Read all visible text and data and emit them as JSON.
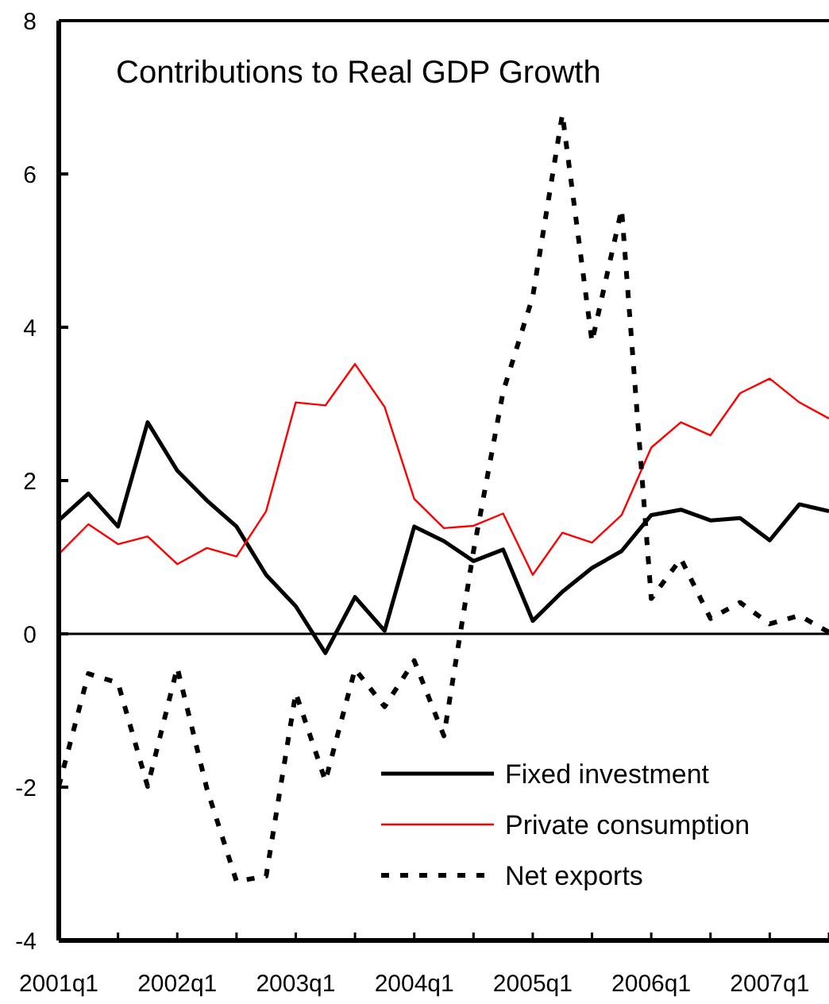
{
  "chart_data": {
    "type": "line",
    "title": "Contributions to Real GDP Growth",
    "categories": [
      "2001q1",
      null,
      null,
      null,
      "2002q1",
      null,
      null,
      null,
      "2003q1",
      null,
      null,
      null,
      "2004q1",
      null,
      null,
      null,
      "2005q1",
      null,
      null,
      null,
      "2006q1",
      null,
      null,
      null,
      "2007q1",
      null,
      null
    ],
    "ylim": [
      -4,
      8
    ],
    "yticks": [
      -4,
      -2,
      0,
      2,
      4,
      6,
      8
    ],
    "series": [
      {
        "name": "Fixed investment",
        "color": "#000000",
        "line_style": "solid",
        "values": [
          1.48,
          1.83,
          1.4,
          2.76,
          2.13,
          1.74,
          1.4,
          0.77,
          0.36,
          -0.25,
          0.48,
          0.04,
          1.4,
          1.21,
          0.95,
          1.1,
          0.17,
          0.55,
          0.86,
          1.08,
          1.55,
          1.62,
          1.48,
          1.51,
          1.22,
          1.69,
          1.6
        ]
      },
      {
        "name": "Private consumption",
        "color": "#ff0000",
        "line_style": "solid",
        "values": [
          1.04,
          1.43,
          1.17,
          1.27,
          0.91,
          1.12,
          1.01,
          1.6,
          3.02,
          2.98,
          3.52,
          2.96,
          1.76,
          1.38,
          1.41,
          1.57,
          0.77,
          1.32,
          1.19,
          1.55,
          2.43,
          2.76,
          2.59,
          3.14,
          3.33,
          3.02,
          2.81
        ]
      },
      {
        "name": "Net exports",
        "color": "#000000",
        "line_style": "dotted",
        "values": [
          -1.99,
          -0.52,
          -0.64,
          -1.99,
          -0.44,
          -2.02,
          -3.23,
          -3.16,
          -0.77,
          -1.92,
          -0.46,
          -0.95,
          -0.35,
          -1.33,
          1.08,
          3.16,
          4.4,
          6.78,
          3.81,
          5.54,
          0.46,
          0.98,
          0.2,
          0.41,
          0.13,
          0.24,
          0.02
        ]
      }
    ],
    "ref_lines": [
      {
        "axis": "y",
        "value": 0,
        "color": "#000000"
      }
    ],
    "grid": false,
    "legend": "bottom right"
  }
}
